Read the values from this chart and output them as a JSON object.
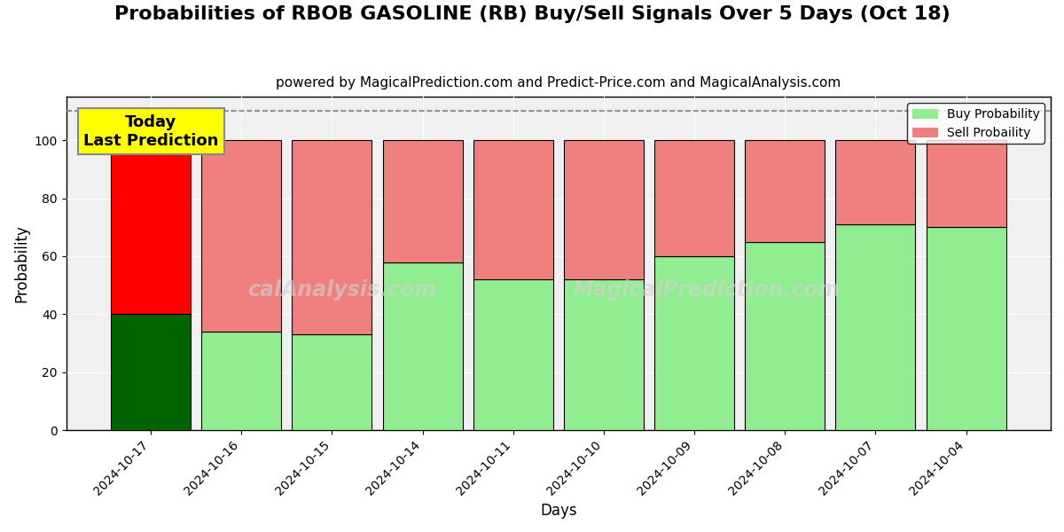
{
  "title": "Probabilities of RBOB GASOLINE (RB) Buy/Sell Signals Over 5 Days (Oct 18)",
  "subtitle": "powered by MagicalPrediction.com and Predict-Price.com and MagicalAnalysis.com",
  "xlabel": "Days",
  "ylabel": "Probability",
  "categories": [
    "2024-10-17",
    "2024-10-16",
    "2024-10-15",
    "2024-10-14",
    "2024-10-11",
    "2024-10-10",
    "2024-10-09",
    "2024-10-08",
    "2024-10-07",
    "2024-10-04"
  ],
  "buy_values": [
    40,
    34,
    33,
    58,
    52,
    52,
    60,
    65,
    71,
    70
  ],
  "sell_values": [
    60,
    66,
    67,
    42,
    48,
    48,
    40,
    35,
    29,
    30
  ],
  "buy_colors": [
    "#006400",
    "#90EE90",
    "#90EE90",
    "#90EE90",
    "#90EE90",
    "#90EE90",
    "#90EE90",
    "#90EE90",
    "#90EE90",
    "#90EE90"
  ],
  "sell_colors": [
    "#FF0000",
    "#F08080",
    "#F08080",
    "#F08080",
    "#F08080",
    "#F08080",
    "#F08080",
    "#F08080",
    "#F08080",
    "#F08080"
  ],
  "today_box_color": "#FFFF00",
  "today_label": "Today\nLast Prediction",
  "legend_buy_color": "#90EE90",
  "legend_sell_color": "#F08080",
  "legend_buy_label": "Buy Probability",
  "legend_sell_label": "Sell Probaility",
  "dashed_line_y": 110,
  "ylim": [
    0,
    115
  ],
  "yticks": [
    0,
    20,
    40,
    60,
    80,
    100
  ],
  "watermark_left": "calAnalysis.com",
  "watermark_right": "MagicalPrediction.com",
  "background_color": "#ffffff",
  "grid_color": "#aaaaaa",
  "bar_width": 0.88,
  "title_fontsize": 16,
  "subtitle_fontsize": 11
}
